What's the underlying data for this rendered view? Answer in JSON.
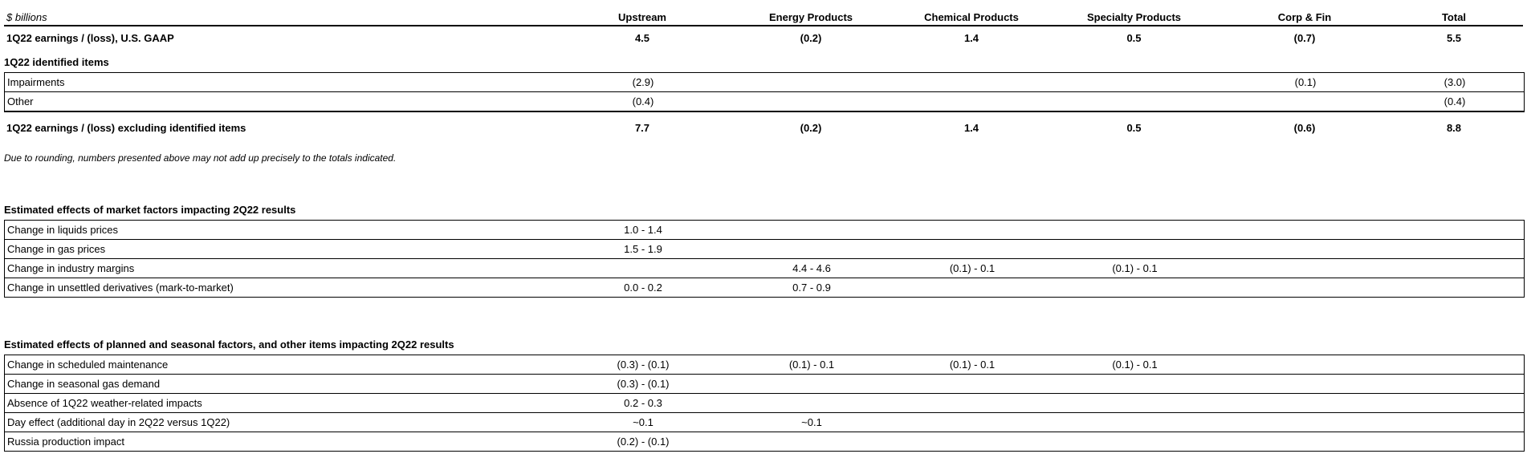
{
  "unit_label": "$ billions",
  "columns": [
    "Upstream",
    "Energy Products",
    "Chemical Products",
    "Specialty Products",
    "Corp & Fin",
    "Total"
  ],
  "gaap_row": {
    "label": "1Q22 earnings / (loss), U.S. GAAP",
    "values": [
      "4.5",
      "(0.2)",
      "1.4",
      "0.5",
      "(0.7)",
      "5.5"
    ]
  },
  "identified_section": {
    "title": "1Q22 identified items",
    "rows": [
      {
        "label": "Impairments",
        "values": [
          "(2.9)",
          "",
          "",
          "",
          "(0.1)",
          "(3.0)"
        ]
      },
      {
        "label": "Other",
        "values": [
          "(0.4)",
          "",
          "",
          "",
          "",
          "(0.4)"
        ]
      }
    ]
  },
  "excl_row": {
    "label": "1Q22 earnings / (loss) excluding identified items",
    "values": [
      "7.7",
      "(0.2)",
      "1.4",
      "0.5",
      "(0.6)",
      "8.8"
    ]
  },
  "footnote": "Due to rounding, numbers presented above may not add up precisely to the totals indicated.",
  "market_section": {
    "title": "Estimated effects of market factors impacting 2Q22 results",
    "rows": [
      {
        "label": "Change in liquids prices",
        "values": [
          "1.0 - 1.4",
          "",
          "",
          "",
          "",
          ""
        ]
      },
      {
        "label": "Change in gas prices",
        "values": [
          "1.5 - 1.9",
          "",
          "",
          "",
          "",
          ""
        ]
      },
      {
        "label": "Change in industry margins",
        "values": [
          "",
          "4.4 - 4.6",
          "(0.1) - 0.1",
          "(0.1) - 0.1",
          "",
          ""
        ]
      },
      {
        "label": "Change in unsettled derivatives (mark-to-market)",
        "values": [
          "0.0 - 0.2",
          "0.7 - 0.9",
          "",
          "",
          "",
          ""
        ]
      }
    ]
  },
  "planned_section": {
    "title": "Estimated effects of planned and seasonal factors, and other items impacting 2Q22 results",
    "rows": [
      {
        "label": "Change in scheduled maintenance",
        "values": [
          "(0.3) - (0.1)",
          "(0.1) - 0.1",
          "(0.1) - 0.1",
          "(0.1) - 0.1",
          "",
          ""
        ]
      },
      {
        "label": "Change in seasonal gas demand",
        "values": [
          "(0.3) - (0.1)",
          "",
          "",
          "",
          "",
          ""
        ]
      },
      {
        "label": "Absence of 1Q22 weather-related impacts",
        "values": [
          "0.2 - 0.3",
          "",
          "",
          "",
          "",
          ""
        ]
      },
      {
        "label": "Day effect (additional day in 2Q22 versus 1Q22)",
        "values": [
          "~0.1",
          "~0.1",
          "",
          "",
          "",
          ""
        ]
      },
      {
        "label": "Russia production impact",
        "values": [
          "(0.2) - (0.1)",
          "",
          "",
          "",
          "",
          ""
        ]
      }
    ]
  }
}
